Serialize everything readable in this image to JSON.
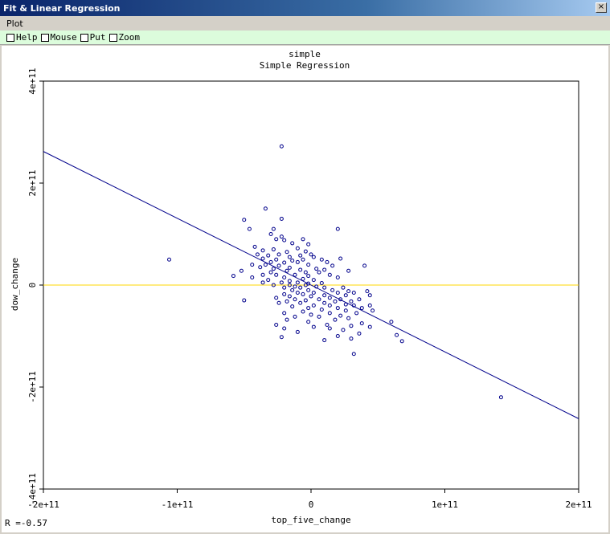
{
  "window": {
    "title": "Fit & Linear Regression",
    "close_glyph": "×"
  },
  "menu": {
    "items": [
      "Plot"
    ]
  },
  "toolbar": {
    "checks": [
      "Help",
      "Mouse",
      "Put",
      "Zoom"
    ]
  },
  "stat": {
    "r_text": "R =-0.57"
  },
  "colors": {
    "points": "#00008b",
    "regression_line": "#00008b",
    "zero_line": "#ffd700"
  },
  "chart_data": {
    "type": "scatter",
    "title": "simple",
    "subtitle": "Simple Regression",
    "xlabel": "top_five_change",
    "ylabel": "dow_change",
    "xlim": [
      -200000000000,
      200000000000
    ],
    "ylim": [
      -400000000000,
      400000000000
    ],
    "x_ticks": [
      {
        "v": -200000000000,
        "label": "-2e+11"
      },
      {
        "v": -100000000000,
        "label": "-1e+11"
      },
      {
        "v": 0,
        "label": "0"
      },
      {
        "v": 100000000000,
        "label": "1e+11"
      },
      {
        "v": 200000000000,
        "label": "2e+11"
      }
    ],
    "y_ticks": [
      {
        "v": -400000000000,
        "label": "-4e+11"
      },
      {
        "v": -200000000000,
        "label": "-2e+11"
      },
      {
        "v": 0,
        "label": "0"
      },
      {
        "v": 200000000000,
        "label": "2e+11"
      },
      {
        "v": 400000000000,
        "label": "4e+11"
      }
    ],
    "reference_line_y": 0,
    "regression_line": [
      [
        -200000000000,
        262000000000
      ],
      [
        200000000000,
        -262000000000
      ]
    ],
    "points": [
      [
        -22000000000,
        272000000000
      ],
      [
        -34000000000,
        150000000000
      ],
      [
        -50000000000,
        128000000000
      ],
      [
        -22000000000,
        130000000000
      ],
      [
        -46000000000,
        110000000000
      ],
      [
        -28000000000,
        110000000000
      ],
      [
        20000000000,
        110000000000
      ],
      [
        -30000000000,
        100000000000
      ],
      [
        -22000000000,
        95000000000
      ],
      [
        -26000000000,
        90000000000
      ],
      [
        -20000000000,
        88000000000
      ],
      [
        -6000000000,
        90000000000
      ],
      [
        -14000000000,
        82000000000
      ],
      [
        -2000000000,
        80000000000
      ],
      [
        -42000000000,
        75000000000
      ],
      [
        -36000000000,
        68000000000
      ],
      [
        -28000000000,
        70000000000
      ],
      [
        -10000000000,
        72000000000
      ],
      [
        -18000000000,
        65000000000
      ],
      [
        -4000000000,
        66000000000
      ],
      [
        0,
        60000000000
      ],
      [
        -40000000000,
        60000000000
      ],
      [
        -32000000000,
        58000000000
      ],
      [
        -24000000000,
        60000000000
      ],
      [
        -16000000000,
        55000000000
      ],
      [
        -8000000000,
        58000000000
      ],
      [
        2000000000,
        55000000000
      ],
      [
        -36000000000,
        52000000000
      ],
      [
        -26000000000,
        50000000000
      ],
      [
        -14000000000,
        48000000000
      ],
      [
        -6000000000,
        50000000000
      ],
      [
        8000000000,
        50000000000
      ],
      [
        22000000000,
        52000000000
      ],
      [
        -30000000000,
        45000000000
      ],
      [
        -20000000000,
        44000000000
      ],
      [
        -10000000000,
        45000000000
      ],
      [
        12000000000,
        45000000000
      ],
      [
        -44000000000,
        40000000000
      ],
      [
        -34000000000,
        40000000000
      ],
      [
        -24000000000,
        38000000000
      ],
      [
        -2000000000,
        40000000000
      ],
      [
        16000000000,
        38000000000
      ],
      [
        40000000000,
        38000000000
      ],
      [
        -38000000000,
        35000000000
      ],
      [
        -28000000000,
        32000000000
      ],
      [
        -16000000000,
        34000000000
      ],
      [
        4000000000,
        32000000000
      ],
      [
        -18000000000,
        28000000000
      ],
      [
        -8000000000,
        30000000000
      ],
      [
        10000000000,
        30000000000
      ],
      [
        -52000000000,
        28000000000
      ],
      [
        -4000000000,
        25000000000
      ],
      [
        -30000000000,
        25000000000
      ],
      [
        6000000000,
        25000000000
      ],
      [
        28000000000,
        28000000000
      ],
      [
        -36000000000,
        20000000000
      ],
      [
        -26000000000,
        20000000000
      ],
      [
        -12000000000,
        20000000000
      ],
      [
        -2000000000,
        18000000000
      ],
      [
        14000000000,
        20000000000
      ],
      [
        -58000000000,
        18000000000
      ],
      [
        -44000000000,
        15000000000
      ],
      [
        -20000000000,
        15000000000
      ],
      [
        -6000000000,
        12000000000
      ],
      [
        20000000000,
        15000000000
      ],
      [
        -32000000000,
        10000000000
      ],
      [
        -16000000000,
        8000000000
      ],
      [
        2000000000,
        10000000000
      ],
      [
        -10000000000,
        5000000000
      ],
      [
        -22000000000,
        5000000000
      ],
      [
        -36000000000,
        5000000000
      ],
      [
        -2000000000,
        3000000000
      ],
      [
        8000000000,
        4000000000
      ],
      [
        -28000000000,
        0
      ],
      [
        -16000000000,
        0
      ],
      [
        -4000000000,
        0
      ],
      [
        -12000000000,
        -3000000000
      ],
      [
        4000000000,
        -3000000000
      ],
      [
        -20000000000,
        -5000000000
      ],
      [
        -8000000000,
        -5000000000
      ],
      [
        10000000000,
        -5000000000
      ],
      [
        24000000000,
        -5000000000
      ],
      [
        -14000000000,
        -10000000000
      ],
      [
        -2000000000,
        -10000000000
      ],
      [
        16000000000,
        -10000000000
      ],
      [
        28000000000,
        -12000000000
      ],
      [
        42000000000,
        -12000000000
      ],
      [
        -10000000000,
        -15000000000
      ],
      [
        2000000000,
        -15000000000
      ],
      [
        20000000000,
        -15000000000
      ],
      [
        32000000000,
        -15000000000
      ],
      [
        -20000000000,
        -18000000000
      ],
      [
        -6000000000,
        -18000000000
      ],
      [
        10000000000,
        -20000000000
      ],
      [
        26000000000,
        -20000000000
      ],
      [
        44000000000,
        -20000000000
      ],
      [
        -16000000000,
        -22000000000
      ],
      [
        0,
        -22000000000
      ],
      [
        14000000000,
        -25000000000
      ],
      [
        -26000000000,
        -25000000000
      ],
      [
        -12000000000,
        -28000000000
      ],
      [
        6000000000,
        -28000000000
      ],
      [
        22000000000,
        -28000000000
      ],
      [
        36000000000,
        -28000000000
      ],
      [
        -4000000000,
        -30000000000
      ],
      [
        18000000000,
        -32000000000
      ],
      [
        30000000000,
        -32000000000
      ],
      [
        -50000000000,
        -30000000000
      ],
      [
        -18000000000,
        -32000000000
      ],
      [
        -8000000000,
        -35000000000
      ],
      [
        10000000000,
        -35000000000
      ],
      [
        26000000000,
        -38000000000
      ],
      [
        -24000000000,
        -35000000000
      ],
      [
        2000000000,
        -40000000000
      ],
      [
        14000000000,
        -40000000000
      ],
      [
        32000000000,
        -40000000000
      ],
      [
        44000000000,
        -40000000000
      ],
      [
        -14000000000,
        -42000000000
      ],
      [
        -2000000000,
        -45000000000
      ],
      [
        20000000000,
        -45000000000
      ],
      [
        38000000000,
        -45000000000
      ],
      [
        8000000000,
        -48000000000
      ],
      [
        26000000000,
        -50000000000
      ],
      [
        46000000000,
        -50000000000
      ],
      [
        -6000000000,
        -52000000000
      ],
      [
        14000000000,
        -55000000000
      ],
      [
        34000000000,
        -55000000000
      ],
      [
        -20000000000,
        -55000000000
      ],
      [
        0,
        -58000000000
      ],
      [
        22000000000,
        -60000000000
      ],
      [
        6000000000,
        -62000000000
      ],
      [
        -12000000000,
        -62000000000
      ],
      [
        28000000000,
        -65000000000
      ],
      [
        -18000000000,
        -68000000000
      ],
      [
        18000000000,
        -68000000000
      ],
      [
        60000000000,
        -72000000000
      ],
      [
        -2000000000,
        -72000000000
      ],
      [
        38000000000,
        -75000000000
      ],
      [
        12000000000,
        -78000000000
      ],
      [
        -26000000000,
        -78000000000
      ],
      [
        30000000000,
        -80000000000
      ],
      [
        2000000000,
        -82000000000
      ],
      [
        44000000000,
        -82000000000
      ],
      [
        -20000000000,
        -85000000000
      ],
      [
        14000000000,
        -85000000000
      ],
      [
        24000000000,
        -88000000000
      ],
      [
        -10000000000,
        -92000000000
      ],
      [
        36000000000,
        -95000000000
      ],
      [
        64000000000,
        -98000000000
      ],
      [
        20000000000,
        -100000000000
      ],
      [
        -22000000000,
        -102000000000
      ],
      [
        10000000000,
        -108000000000
      ],
      [
        30000000000,
        -105000000000
      ],
      [
        68000000000,
        -110000000000
      ],
      [
        32000000000,
        -135000000000
      ],
      [
        -106000000000,
        50000000000
      ],
      [
        142000000000,
        -220000000000
      ]
    ]
  }
}
